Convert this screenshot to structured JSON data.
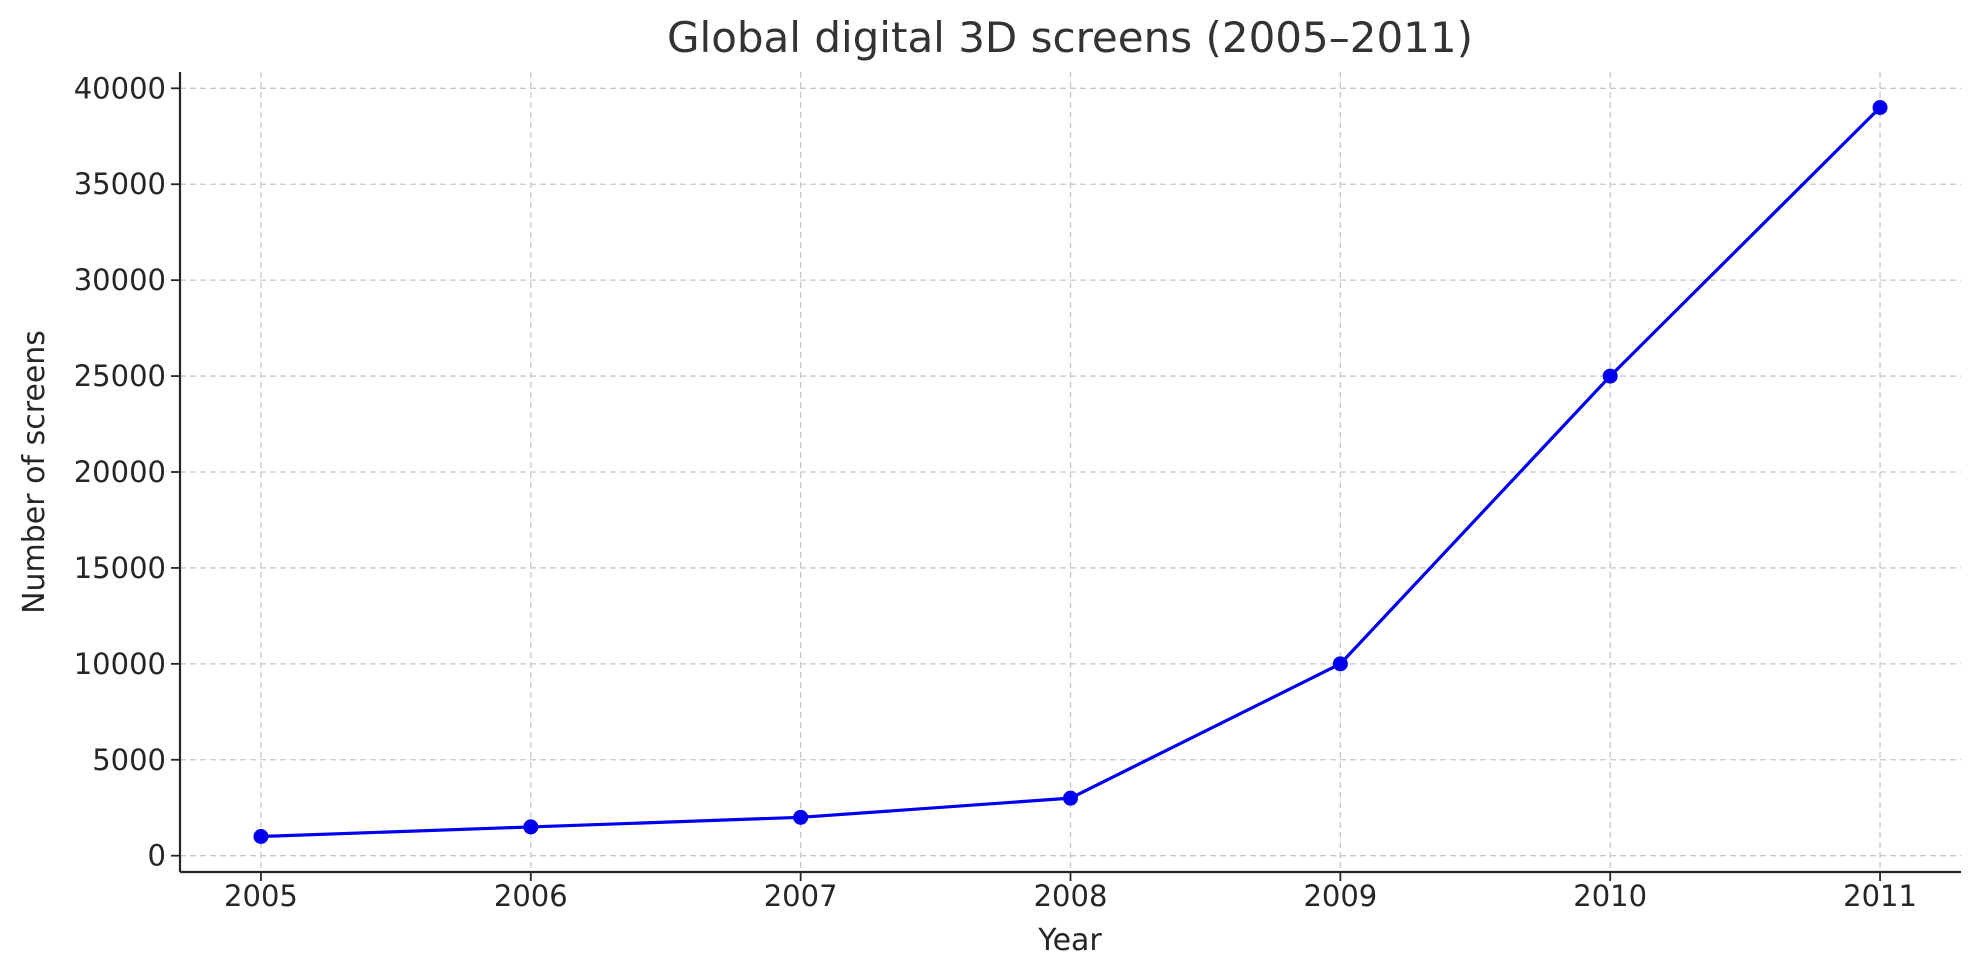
{
  "chart_data": {
    "type": "line",
    "title": "Global digital 3D screens (2005–2011)",
    "xlabel": "Year",
    "ylabel": "Number of screens",
    "x": [
      2005,
      2006,
      2007,
      2008,
      2009,
      2010,
      2011
    ],
    "series": [
      {
        "values": [
          1000,
          1500,
          2000,
          3000,
          10000,
          25000,
          39000
        ]
      }
    ],
    "x_ticks": [
      "2005",
      "2006",
      "2007",
      "2008",
      "2009",
      "2010",
      "2011"
    ],
    "y_ticks": [
      0,
      5000,
      10000,
      15000,
      20000,
      25000,
      30000,
      35000,
      40000
    ],
    "xlim": [
      2004.7,
      2011.3
    ],
    "ylim": [
      -850,
      40850
    ],
    "grid": true,
    "legend": "none",
    "colors": {
      "line": "#0000ee",
      "marker": "#0000ee",
      "grid": "#c8c8c8",
      "axis": "#262626"
    }
  }
}
